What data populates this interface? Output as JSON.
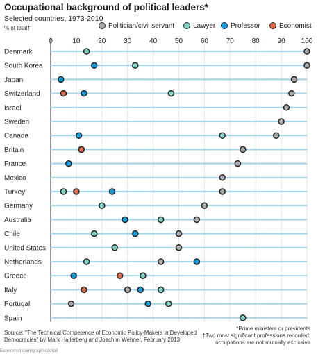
{
  "header": {
    "title": "Occupational background of political leaders*",
    "subtitle": "Selected countries, 1973-2010",
    "unit": "% of total†"
  },
  "colors": {
    "politician": "#a8a8a8",
    "lawyer": "#7fd3c0",
    "professor": "#119ee0",
    "economist": "#e0694a",
    "row_line": "#a9d6e8",
    "grid": "#d6e9f1",
    "zero_line": "#333333",
    "marker_stroke": "#222222"
  },
  "legend": [
    {
      "name": "Politician/civil servant",
      "color": "#a8a8a8"
    },
    {
      "name": "Lawyer",
      "color": "#7fd3c0"
    },
    {
      "name": "Professor",
      "color": "#119ee0"
    },
    {
      "name": "Economist",
      "color": "#e0694a"
    }
  ],
  "chart_data": {
    "type": "scatter",
    "title": "Occupational background of political leaders*",
    "subtitle": "Selected countries, 1973-2010",
    "xlabel": "% of total†",
    "xlim": [
      0,
      100
    ],
    "xticks": [
      0,
      10,
      20,
      30,
      40,
      50,
      60,
      70,
      80,
      90,
      100
    ],
    "grid": true,
    "legend_position": "top-right",
    "categories": [
      "Denmark",
      "South Korea",
      "Japan",
      "Switzerland",
      "Israel",
      "Sweden",
      "Canada",
      "Britain",
      "France",
      "Mexico",
      "Turkey",
      "Germany",
      "Australia",
      "Chile",
      "United States",
      "Netherlands",
      "Greece",
      "Italy",
      "Portugal",
      "Spain"
    ],
    "series": [
      {
        "name": "Politician/civil servant",
        "color": "#a8a8a8",
        "values": [
          100,
          100,
          95,
          94,
          92,
          90,
          88,
          75,
          73,
          67,
          67,
          60,
          57,
          50,
          50,
          43,
          36,
          30,
          8,
          null
        ]
      },
      {
        "name": "Lawyer",
        "color": "#7fd3c0",
        "values": [
          14,
          33,
          null,
          47,
          null,
          null,
          67,
          12,
          null,
          null,
          5,
          20,
          43,
          17,
          25,
          14,
          36,
          43,
          46,
          75
        ]
      },
      {
        "name": "Professor",
        "color": "#119ee0",
        "values": [
          null,
          17,
          4,
          13,
          null,
          null,
          11,
          12,
          7,
          null,
          24,
          null,
          29,
          33,
          null,
          57,
          9,
          35,
          38,
          null
        ]
      },
      {
        "name": "Economist",
        "color": "#e0694a",
        "values": [
          null,
          null,
          null,
          5,
          null,
          null,
          null,
          12,
          null,
          null,
          10,
          null,
          null,
          null,
          null,
          null,
          27,
          13,
          null,
          null
        ]
      }
    ]
  },
  "footer": {
    "source_line1": "Source: \"The Technical Competence of Economic Policy-Makers in Developed",
    "source_line2": "Democracies\" by Mark Hallerberg and Joachim Wehner, February 2013",
    "note1": "*Prime ministers or presidents",
    "note2": "†Two most significant professions recorded;",
    "note3": "occupations are not mutually exclusive",
    "url": "Economist.com/graphicdetail"
  }
}
